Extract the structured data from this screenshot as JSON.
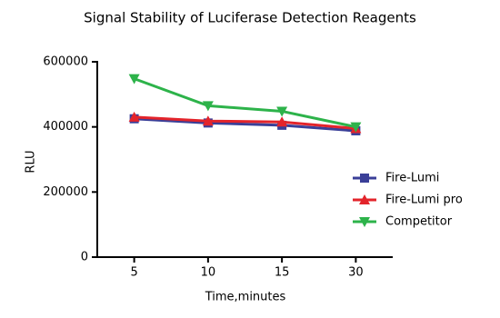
{
  "chart_data": {
    "type": "line",
    "title": "Signal Stability of Luciferase Detection Reagents",
    "x_label": "Time,minutes",
    "y_label": "RLU",
    "categories": [
      "5",
      "10",
      "15",
      "30"
    ],
    "series": [
      {
        "name": "Fire-Lumi",
        "color": "#3a3f98",
        "marker": "square",
        "values": [
          425000,
          412000,
          405000,
          388000
        ]
      },
      {
        "name": "Fire-Lumi pro",
        "color": "#e3242b",
        "marker": "triangle-up",
        "values": [
          430000,
          418000,
          415000,
          395000
        ]
      },
      {
        "name": "Competitor",
        "color": "#2db34a",
        "marker": "triangle-down",
        "values": [
          548000,
          465000,
          448000,
          400000
        ]
      }
    ],
    "ylim": [
      0,
      600000
    ],
    "yticks": [
      0,
      200000,
      400000,
      600000
    ],
    "grid": false,
    "legend": "right"
  }
}
